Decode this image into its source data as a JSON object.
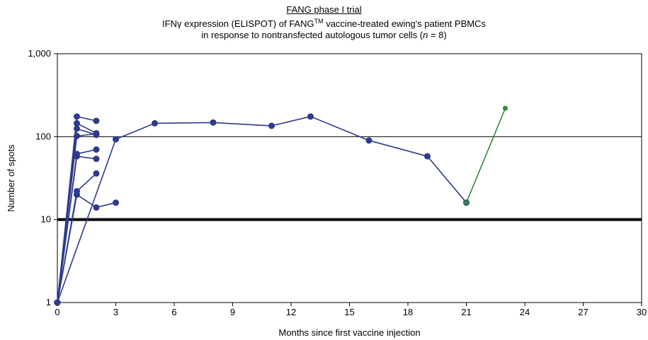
{
  "chart_data": {
    "type": "line",
    "title": "FANG phase I trial",
    "subtitle_line1_pre": "IFNγ expression (ELISPOT) of FANG",
    "subtitle_line1_sup": "TM",
    "subtitle_line1_post": " vaccine-treated ewing's patient PBMCs",
    "subtitle_line2_pre": "in response to nontransfected autologous tumor cells (",
    "subtitle_line2_italic": "n",
    "subtitle_line2_post": " = 8)",
    "xlabel": "Months since first vaccine injection",
    "ylabel": "Number of spots",
    "x_ticks": [
      0,
      3,
      6,
      9,
      12,
      15,
      18,
      21,
      24,
      27,
      30
    ],
    "y_ticks": [
      1,
      10,
      100,
      1000
    ],
    "y_tick_labels": [
      "1",
      "10",
      "100",
      "1,000"
    ],
    "xlim": [
      0,
      30
    ],
    "ylim": [
      1,
      1000
    ],
    "y_scale": "log",
    "reference_line_y": 10,
    "gridlines_y": [
      100,
      1000
    ],
    "colors": {
      "primary": "#2e3a8c",
      "secondary": "#2e8b3a",
      "reference": "#000000"
    },
    "series": [
      {
        "color": "primary",
        "points": [
          [
            0,
            1
          ],
          [
            1,
            175
          ],
          [
            2,
            155
          ]
        ]
      },
      {
        "color": "primary",
        "points": [
          [
            0,
            1
          ],
          [
            1,
            145
          ],
          [
            2,
            110
          ]
        ]
      },
      {
        "color": "primary",
        "points": [
          [
            0,
            1
          ],
          [
            1,
            125
          ],
          [
            2,
            105
          ]
        ]
      },
      {
        "color": "primary",
        "points": [
          [
            0,
            1
          ],
          [
            1,
            102
          ],
          [
            2,
            108
          ]
        ]
      },
      {
        "color": "primary",
        "points": [
          [
            0,
            1
          ],
          [
            1,
            62
          ],
          [
            2,
            70
          ]
        ]
      },
      {
        "color": "primary",
        "points": [
          [
            0,
            1
          ],
          [
            1,
            58
          ],
          [
            2,
            54
          ]
        ]
      },
      {
        "color": "primary",
        "points": [
          [
            0,
            1
          ],
          [
            1,
            22
          ],
          [
            2,
            36
          ]
        ]
      },
      {
        "color": "primary",
        "points": [
          [
            0,
            1
          ],
          [
            1,
            20
          ],
          [
            2,
            14
          ],
          [
            3,
            16
          ]
        ]
      },
      {
        "color": "primary",
        "points": [
          [
            0,
            1
          ],
          [
            3,
            93
          ],
          [
            5,
            145
          ],
          [
            8,
            148
          ],
          [
            11,
            135
          ],
          [
            13,
            175
          ],
          [
            16,
            90
          ],
          [
            19,
            58
          ],
          [
            21,
            16
          ]
        ]
      },
      {
        "color": "secondary",
        "points": [
          [
            21,
            16
          ],
          [
            23,
            220
          ]
        ]
      }
    ]
  }
}
